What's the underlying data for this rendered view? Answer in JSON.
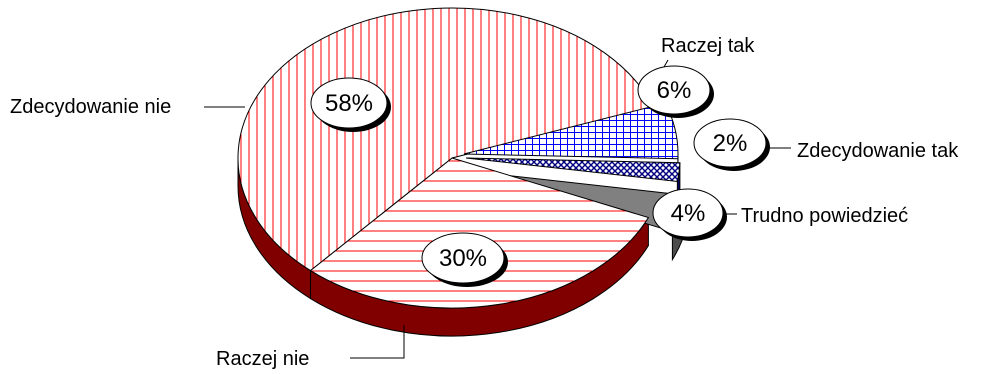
{
  "chart_data": {
    "type": "pie",
    "title": "",
    "categories": [
      "Zdecydowanie nie",
      "Raczej nie",
      "Trudno powiedzieć",
      "Zdecydowanie tak",
      "Raczej tak"
    ],
    "values": [
      58,
      30,
      4,
      2,
      6
    ],
    "value_labels": [
      "58%",
      "30%",
      "4%",
      "2%",
      "6%"
    ],
    "three_d": true,
    "exploded": [
      "Trudno powiedzieć",
      "Zdecydowanie tak",
      "Raczej tak"
    ],
    "legend": "none",
    "colors": {
      "Zdecydowanie nie": "#ff0000",
      "Raczej nie": "#ff0000",
      "Trudno powiedzieć": "#808080",
      "Zdecydowanie tak": "#000080",
      "Raczej tak": "#0000ff",
      "side_wall": "#800000"
    }
  }
}
